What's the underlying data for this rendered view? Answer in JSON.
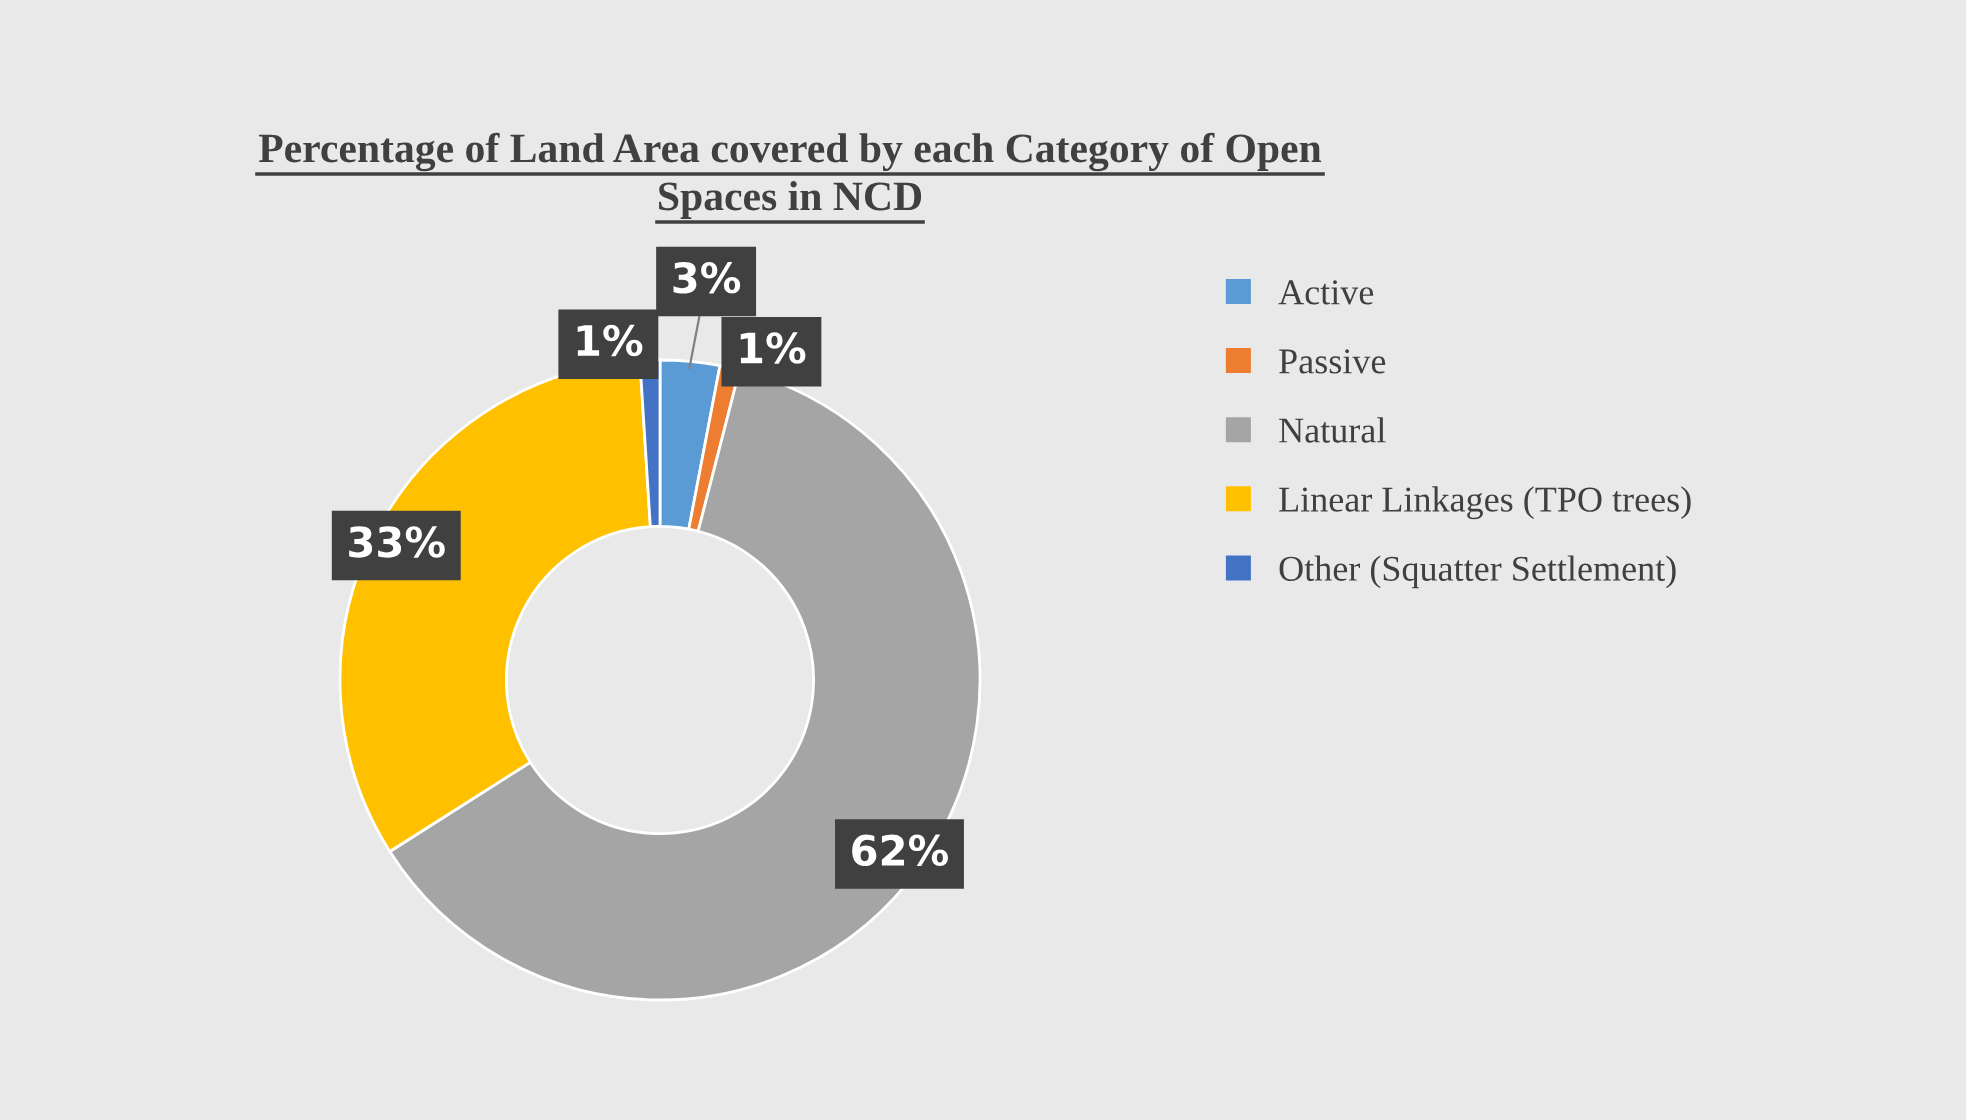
{
  "chart_data": {
    "type": "donut",
    "title": "Percentage of Land Area covered by each Category of Open Spaces in NCD",
    "categories": [
      "Active",
      "Passive",
      "Natural",
      "Linear Linkages (TPO trees)",
      "Other (Squatter Settlement)"
    ],
    "values": [
      3,
      1,
      62,
      33,
      1
    ],
    "colors": [
      "#5b9bd5",
      "#ed7d31",
      "#a5a5a5",
      "#ffc000",
      "#4472c4"
    ],
    "value_labels": [
      "3%",
      "1%",
      "62%",
      "33%",
      "1%"
    ],
    "legend": "right"
  }
}
